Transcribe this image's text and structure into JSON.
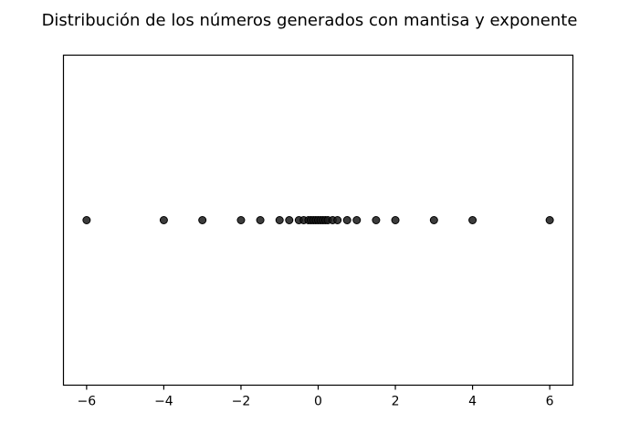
{
  "chart_data": {
    "type": "scatter",
    "title": "Distribución de los números generados con mantisa y exponente",
    "xlabel": "",
    "ylabel": "",
    "xlim": [
      -6.6,
      6.6
    ],
    "ylim": [
      -1,
      1
    ],
    "x_ticks": [
      -6,
      -4,
      -2,
      0,
      2,
      4,
      6
    ],
    "x_tick_labels": [
      "−6",
      "−4",
      "−2",
      "0",
      "2",
      "4",
      "6"
    ],
    "y_ticks": [],
    "grid": false,
    "legend": "none",
    "marker_color": "#1a1a1a",
    "marker_edge_color": "#000000",
    "x": [
      -6,
      -4,
      -3,
      -2,
      -1.5,
      -1,
      -0.75,
      -0.5,
      -0.375,
      -0.25,
      -0.1875,
      -0.125,
      -0.0625,
      0,
      0.0625,
      0.125,
      0.1875,
      0.25,
      0.375,
      0.5,
      0.75,
      1,
      1.5,
      2,
      3,
      4,
      6
    ],
    "y": [
      0,
      0,
      0,
      0,
      0,
      0,
      0,
      0,
      0,
      0,
      0,
      0,
      0,
      0,
      0,
      0,
      0,
      0,
      0,
      0,
      0,
      0,
      0,
      0,
      0,
      0,
      0
    ]
  }
}
